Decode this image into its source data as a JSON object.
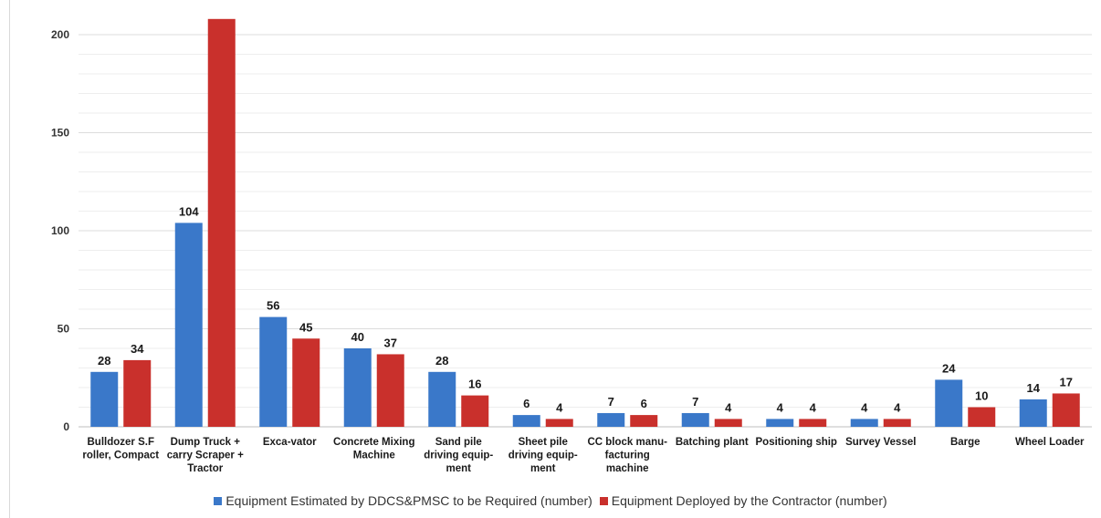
{
  "chart_data": {
    "type": "bar",
    "categories": [
      [
        "Bulldozer S.F",
        "roller, Compact"
      ],
      [
        "Dump Truck +",
        "carry Scraper +",
        "Tractor"
      ],
      [
        "Exca-vator"
      ],
      [
        "Concrete Mixing",
        "Machine"
      ],
      [
        "Sand pile",
        "driving equip-",
        "ment"
      ],
      [
        "Sheet pile",
        "driving equip-",
        "ment"
      ],
      [
        "CC block manu-",
        "facturing",
        "machine"
      ],
      [
        "Batching plant"
      ],
      [
        "Positioning ship"
      ],
      [
        "Survey Vessel"
      ],
      [
        "Barge"
      ],
      [
        "Wheel Loader"
      ]
    ],
    "series": [
      {
        "name": "Equipment Estimated by DDCS&PMSC to be Required (number)",
        "color": "#3a78c9",
        "values": [
          28,
          104,
          56,
          40,
          28,
          6,
          7,
          7,
          4,
          4,
          24,
          14
        ],
        "labels": [
          "28",
          "104",
          "56",
          "40",
          "28",
          "6",
          "7",
          "7",
          "4",
          "4",
          "24",
          "14"
        ]
      },
      {
        "name": "Equipment Deployed by the Contractor (number)",
        "color": "#c9302c",
        "values": [
          34,
          208,
          45,
          37,
          16,
          4,
          6,
          4,
          4,
          4,
          10,
          17
        ],
        "labels": [
          "34",
          "",
          "45",
          "37",
          "16",
          "4",
          "6",
          "4",
          "4",
          "4",
          "10",
          "17"
        ]
      }
    ],
    "yticks": [
      0,
      50,
      100,
      150,
      200
    ],
    "ylim": [
      0,
      208
    ],
    "grid": true,
    "legend_position": "bottom"
  },
  "legend": {
    "series0_label": "Equipment Estimated by DDCS&PMSC to be Required (number)",
    "series1_label": "Equipment Deployed by the Contractor (number)"
  }
}
